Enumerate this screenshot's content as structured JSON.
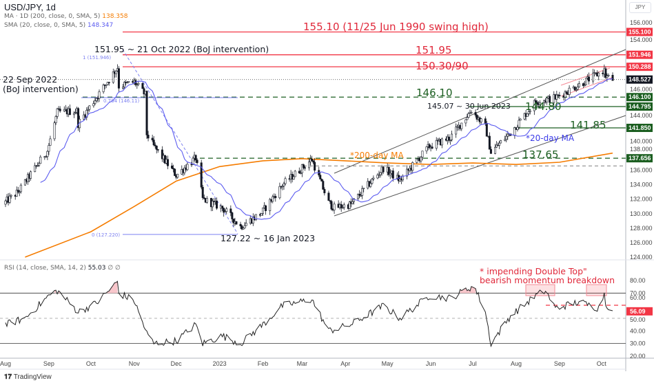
{
  "header": {
    "symbol": "USD/JPY, 1d",
    "currency": "JPY"
  },
  "legend": {
    "ma200_label": "MA · 1D (200, close, 0, SMA, 5)",
    "ma200_value": "138.358",
    "ma200_color": "#f57c00",
    "ma20_label": "SMA (20, close, 0, SMA, 5)",
    "ma20_value": "148.347",
    "ma20_color": "#5b5bf0"
  },
  "rsi_legend": {
    "label": "RSI (14, close, SMA, 14, 2)",
    "value": "55.03",
    "extra": "∅ ∅"
  },
  "footer": {
    "brand": "TradingView"
  },
  "chart_data": [
    {
      "type": "candlestick",
      "title": "USD/JPY, 1d",
      "ylim": [
        122.5,
        159
      ],
      "yticks": [
        "156.000",
        "154.000",
        "146.000",
        "144.000",
        "140.000",
        "138.000",
        "136.000",
        "134.000",
        "132.000",
        "130.000",
        "128.000",
        "126.000",
        "124.000"
      ],
      "xticks": [
        "Aug",
        "Sep",
        "Oct",
        "Nov",
        "Dec",
        "2023",
        "Feb",
        "Mar",
        "Apr",
        "May",
        "Jun",
        "Jul",
        "Aug",
        "Sep",
        "Oct"
      ],
      "xtick_dates": [
        "2022-08-01",
        "2022-09-01",
        "2022-10-01",
        "2022-11-01",
        "2022-12-01",
        "2023-01-01",
        "2023-02-01",
        "2023-03-01",
        "2023-04-01",
        "2023-05-01",
        "2023-06-01",
        "2023-07-01",
        "2023-08-01",
        "2023-09-01",
        "2023-10-01"
      ],
      "close_path": [
        [
          "2022-08-01",
          131.6
        ],
        [
          "2022-08-10",
          133.0
        ],
        [
          "2022-08-31",
          138.7
        ],
        [
          "2022-09-07",
          144.0
        ],
        [
          "2022-09-21",
          144.2
        ],
        [
          "2022-09-22",
          142.4
        ],
        [
          "2022-09-30",
          144.7
        ],
        [
          "2022-10-20",
          150.2
        ],
        [
          "2022-10-21",
          147.6
        ],
        [
          "2022-11-01",
          148.2
        ],
        [
          "2022-11-09",
          146.4
        ],
        [
          "2022-11-10",
          141.0
        ],
        [
          "2022-11-15",
          139.3
        ],
        [
          "2022-12-01",
          135.3
        ],
        [
          "2022-12-15",
          137.7
        ],
        [
          "2022-12-20",
          132.0
        ],
        [
          "2023-01-03",
          130.8
        ],
        [
          "2023-01-16",
          128.2
        ],
        [
          "2023-01-31",
          130.1
        ],
        [
          "2023-02-15",
          134.0
        ],
        [
          "2023-03-08",
          137.5
        ],
        [
          "2023-03-20",
          131.5
        ],
        [
          "2023-03-24",
          130.8
        ],
        [
          "2023-04-05",
          131.3
        ],
        [
          "2023-04-28",
          136.3
        ],
        [
          "2023-05-10",
          134.6
        ],
        [
          "2023-05-31",
          139.3
        ],
        [
          "2023-06-15",
          140.5
        ],
        [
          "2023-06-30",
          144.3
        ],
        [
          "2023-07-10",
          142.0
        ],
        [
          "2023-07-14",
          138.5
        ],
        [
          "2023-07-28",
          141.2
        ],
        [
          "2023-08-15",
          145.5
        ],
        [
          "2023-08-29",
          146.0
        ],
        [
          "2023-09-15",
          147.8
        ],
        [
          "2023-10-03",
          149.8
        ],
        [
          "2023-10-04",
          149.0
        ],
        [
          "2023-10-09",
          148.5
        ]
      ],
      "ma200_path": [
        [
          "2022-08-15",
          124.0
        ],
        [
          "2022-10-01",
          127.5
        ],
        [
          "2022-11-01",
          131.0
        ],
        [
          "2022-12-01",
          134.5
        ],
        [
          "2023-01-01",
          136.5
        ],
        [
          "2023-02-01",
          137.3
        ],
        [
          "2023-03-01",
          137.6
        ],
        [
          "2023-04-01",
          137.3
        ],
        [
          "2023-05-01",
          137.0
        ],
        [
          "2023-06-01",
          136.8
        ],
        [
          "2023-07-01",
          137.0
        ],
        [
          "2023-08-01",
          136.8
        ],
        [
          "2023-09-01",
          137.1
        ],
        [
          "2023-10-09",
          138.36
        ]
      ],
      "price_tags": [
        {
          "value": "155.100",
          "color": "#f23645"
        },
        {
          "value": "151.946",
          "color": "#f23645"
        },
        {
          "value": "150.288",
          "color": "#f23645"
        },
        {
          "value": "148.527",
          "color": "#131722"
        },
        {
          "value": "146.100",
          "color": "#1b5e20"
        },
        {
          "value": "144.795",
          "color": "#1b5e20"
        },
        {
          "value": "141.850",
          "color": "#1b5e20"
        },
        {
          "value": "137.656",
          "color": "#1b5e20"
        }
      ],
      "annotations": {
        "swing_high": "155.10 (11/25 Jun 1990 swing high)",
        "intervention_oct": "151.95 ~ 21 Oct 2022 (BoJ intervention)",
        "r151": "151.95",
        "r150": "150.30/90",
        "intervention_sep_1": "22 Sep 2022",
        "intervention_sep_2": "(BoJ intervention)",
        "s146": "146.10",
        "jun_high": "145.07 ~ 30 Jun 2023",
        "s144": "144.80",
        "s141": "141.85",
        "ma20_note": "*20-day MA",
        "ma200_note": "*200-day MA",
        "s137": "137.65",
        "jan_low": "127.22 ~ 16 Jan 2023",
        "fib_1": "1 (151.946)",
        "fib_0764": "0.764 (146.11)",
        "fib_0": "0 (127.220)"
      }
    },
    {
      "type": "line",
      "title": "RSI (14, close, SMA, 14, 2)",
      "ylim": [
        20,
        80
      ],
      "yticks": [
        "80.00",
        "70.00",
        "60.00",
        "50.00",
        "40.00",
        "30.00",
        "20.00"
      ],
      "levels": [
        70,
        50,
        30
      ],
      "last_tag": {
        "value": "56.09",
        "color": "#f23645"
      },
      "rsi_path": [
        [
          "2022-08-01",
          45
        ],
        [
          "2022-08-15",
          50
        ],
        [
          "2022-09-01",
          68
        ],
        [
          "2022-09-07",
          72
        ],
        [
          "2022-09-22",
          55
        ],
        [
          "2022-10-05",
          62
        ],
        [
          "2022-10-20",
          79
        ],
        [
          "2022-10-21",
          70
        ],
        [
          "2022-11-01",
          64
        ],
        [
          "2022-11-10",
          38
        ],
        [
          "2022-11-15",
          30
        ],
        [
          "2022-12-01",
          32
        ],
        [
          "2022-12-15",
          45
        ],
        [
          "2022-12-20",
          30
        ],
        [
          "2023-01-03",
          36
        ],
        [
          "2023-01-16",
          30
        ],
        [
          "2023-02-01",
          45
        ],
        [
          "2023-02-15",
          60
        ],
        [
          "2023-03-08",
          65
        ],
        [
          "2023-03-20",
          40
        ],
        [
          "2023-04-05",
          45
        ],
        [
          "2023-04-28",
          60
        ],
        [
          "2023-05-10",
          50
        ],
        [
          "2023-05-31",
          68
        ],
        [
          "2023-06-15",
          66
        ],
        [
          "2023-06-30",
          75
        ],
        [
          "2023-07-03",
          73
        ],
        [
          "2023-07-10",
          55
        ],
        [
          "2023-07-14",
          30
        ],
        [
          "2023-07-28",
          52
        ],
        [
          "2023-08-15",
          68
        ],
        [
          "2023-08-22",
          72
        ],
        [
          "2023-08-29",
          58
        ],
        [
          "2023-09-15",
          63
        ],
        [
          "2023-09-29",
          58
        ],
        [
          "2023-10-03",
          70
        ],
        [
          "2023-10-04",
          62
        ],
        [
          "2023-10-09",
          56
        ]
      ],
      "annotation_1": "* impending Double Top\"",
      "annotation_2": "bearish momentum breakdown"
    }
  ]
}
